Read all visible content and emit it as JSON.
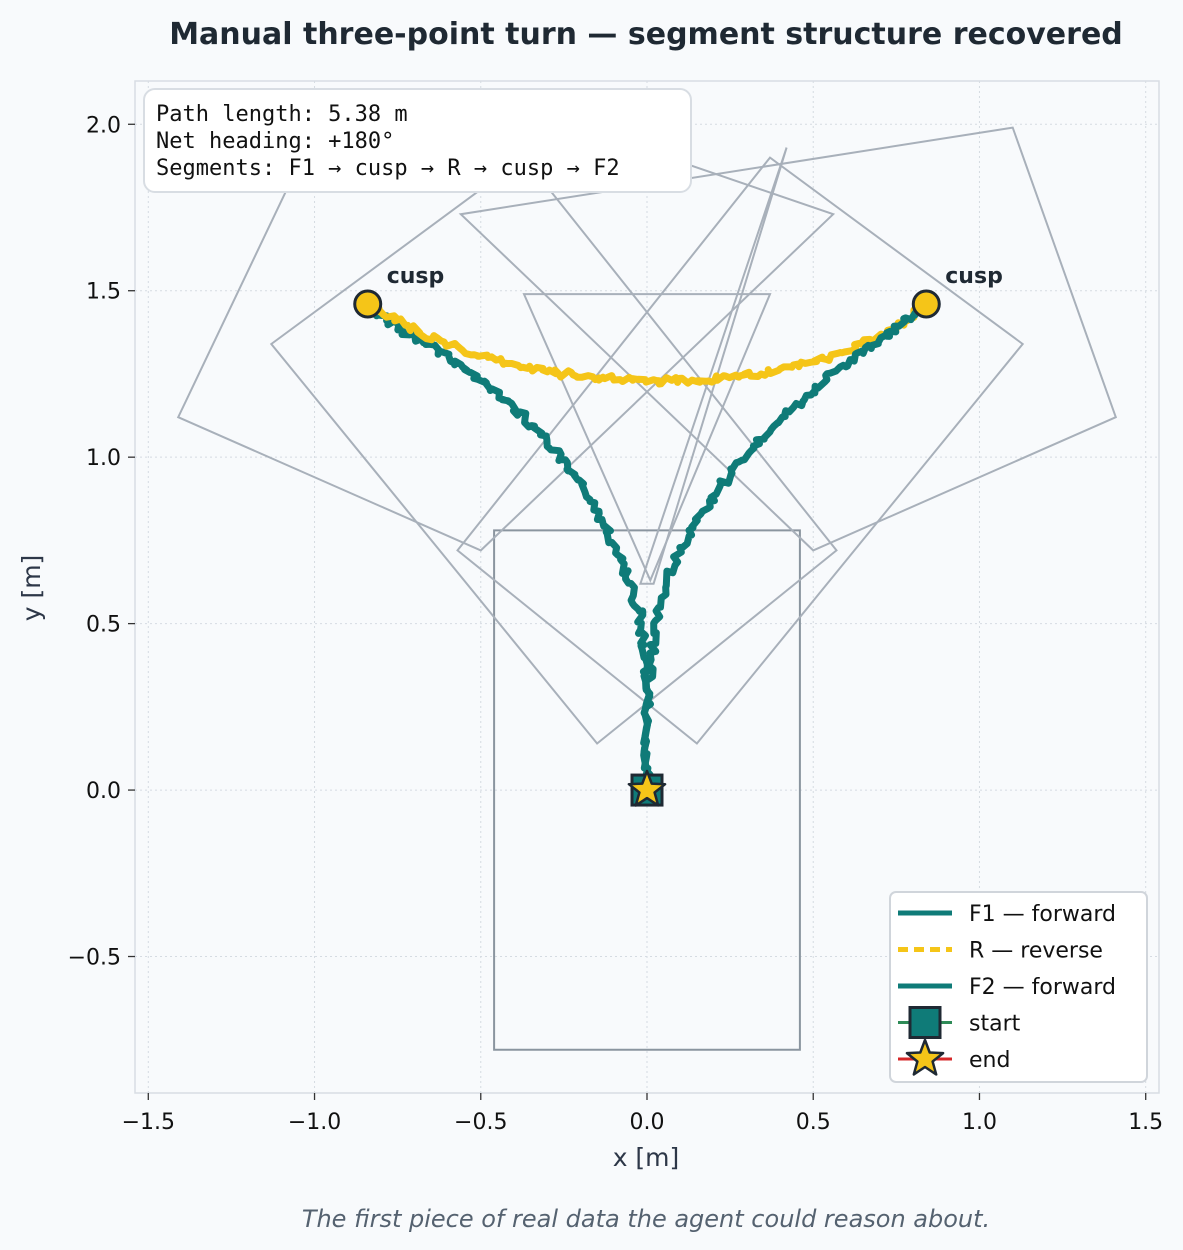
{
  "chart_data": {
    "type": "line",
    "title": "Manual three-point turn — segment structure recovered",
    "caption": "The first piece of real data the agent could reason about.",
    "xlabel": "x  [m]",
    "ylabel": "y  [m]",
    "xlim": [
      -1.54,
      1.54
    ],
    "ylim": [
      -0.91,
      2.13
    ],
    "xticks": [
      -1.5,
      -1.0,
      -0.5,
      0.0,
      0.5,
      1.0,
      1.5
    ],
    "xtick_labels": [
      "−1.5",
      "−1.0",
      "−0.5",
      "0.0",
      "0.5",
      "1.0",
      "1.5"
    ],
    "yticks": [
      -0.5,
      0.0,
      0.5,
      1.0,
      1.5,
      2.0
    ],
    "ytick_labels": [
      "−0.5",
      "0.0",
      "0.5",
      "1.0",
      "1.5",
      "2.0"
    ],
    "grid": true,
    "legend_position": "lower-right",
    "colors": {
      "forward": "#0f7b78",
      "reverse": "#f5c518",
      "footprint": "#a8b0ba",
      "footprint_start": "#8a959f",
      "marker_edge": "#1f2933"
    },
    "series": [
      {
        "name": "F1 — forward",
        "x": [
          0.0,
          0.0,
          0.0,
          -0.01,
          -0.02,
          -0.05,
          -0.09,
          -0.14,
          -0.2,
          -0.26,
          -0.33,
          -0.4,
          -0.47,
          -0.54,
          -0.61,
          -0.68,
          -0.75,
          -0.81,
          -0.84
        ],
        "y": [
          0.0,
          0.15,
          0.3,
          0.42,
          0.52,
          0.62,
          0.72,
          0.82,
          0.92,
          1.0,
          1.08,
          1.15,
          1.21,
          1.26,
          1.31,
          1.35,
          1.39,
          1.43,
          1.46
        ]
      },
      {
        "name": "R — reverse",
        "x": [
          -0.84,
          -0.75,
          -0.65,
          -0.55,
          -0.45,
          -0.35,
          -0.25,
          -0.15,
          -0.05,
          0.05,
          0.15,
          0.25,
          0.35,
          0.45,
          0.55,
          0.65,
          0.75,
          0.84
        ],
        "y": [
          1.46,
          1.41,
          1.36,
          1.32,
          1.29,
          1.27,
          1.25,
          1.24,
          1.23,
          1.23,
          1.23,
          1.24,
          1.25,
          1.27,
          1.3,
          1.34,
          1.39,
          1.46
        ]
      },
      {
        "name": "F2 — forward",
        "x": [
          0.84,
          0.78,
          0.71,
          0.64,
          0.56,
          0.48,
          0.4,
          0.32,
          0.25,
          0.18,
          0.12,
          0.07,
          0.03,
          0.01,
          0.0,
          0.0
        ],
        "y": [
          1.46,
          1.41,
          1.36,
          1.31,
          1.25,
          1.18,
          1.11,
          1.03,
          0.95,
          0.86,
          0.76,
          0.65,
          0.52,
          0.38,
          0.2,
          0.0
        ]
      }
    ],
    "markers": [
      {
        "name": "start",
        "x": 0.0,
        "y": 0.0
      },
      {
        "name": "end",
        "x": 0.0,
        "y": 0.0
      }
    ],
    "cusps": [
      {
        "label": "cusp",
        "x": -0.84,
        "y": 1.46
      },
      {
        "label": "cusp",
        "x": 0.84,
        "y": 1.46
      }
    ],
    "footprints": [
      [
        [
          -0.46,
          -0.78
        ],
        [
          0.46,
          -0.78
        ],
        [
          0.46,
          0.78
        ],
        [
          -0.46,
          0.78
        ]
      ],
      [
        [
          -0.15,
          0.14
        ],
        [
          0.57,
          0.72
        ],
        [
          -0.37,
          1.9
        ],
        [
          -1.13,
          1.34
        ]
      ],
      [
        [
          0.15,
          0.14
        ],
        [
          -0.57,
          0.72
        ],
        [
          0.37,
          1.9
        ],
        [
          1.13,
          1.34
        ]
      ],
      [
        [
          -0.37,
          1.49
        ],
        [
          0.37,
          1.49
        ],
        [
          0.01,
          0.63
        ]
      ],
      [
        [
          0.42,
          1.93
        ],
        [
          -0.02,
          0.62
        ],
        [
          0.02,
          0.62
        ]
      ],
      [
        [
          -1.41,
          1.12
        ],
        [
          -0.5,
          0.72
        ],
        [
          0.56,
          1.73
        ],
        [
          -0.2,
          1.99
        ],
        [
          -0.99,
          2.0
        ]
      ],
      [
        [
          1.41,
          1.12
        ],
        [
          0.5,
          0.72
        ],
        [
          -0.56,
          1.73
        ],
        [
          1.1,
          1.99
        ]
      ]
    ],
    "stats": [
      "Path length: 5.38 m",
      "Net heading: +180°",
      "Segments: F1 → cusp → R → cusp → F2"
    ]
  }
}
